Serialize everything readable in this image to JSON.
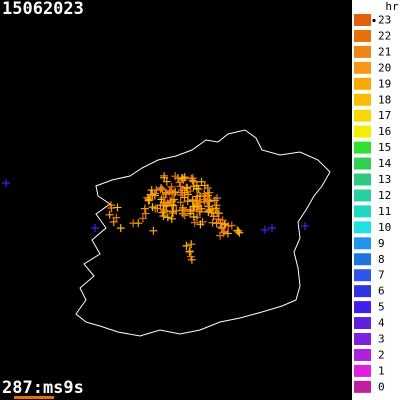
{
  "header": {
    "title": "15062023"
  },
  "footer": {
    "text": "287:ms9s"
  },
  "legend": {
    "unit": "hr",
    "items": [
      {
        "label": "23",
        "color": "#e0600c"
      },
      {
        "label": "22",
        "color": "#e8700c"
      },
      {
        "label": "21",
        "color": "#f08414"
      },
      {
        "label": "20",
        "color": "#f89818"
      },
      {
        "label": "19",
        "color": "#f8a800"
      },
      {
        "label": "18",
        "color": "#f8bc00"
      },
      {
        "label": "17",
        "color": "#f8d800"
      },
      {
        "label": "16",
        "color": "#f0f000"
      },
      {
        "label": "15",
        "color": "#30e030"
      },
      {
        "label": "14",
        "color": "#30d050"
      },
      {
        "label": "13",
        "color": "#30c880"
      },
      {
        "label": "12",
        "color": "#28d0a0"
      },
      {
        "label": "11",
        "color": "#20d8c0"
      },
      {
        "label": "10",
        "color": "#20e0e0"
      },
      {
        "label": "9",
        "color": "#2094f0"
      },
      {
        "label": "8",
        "color": "#2074e0"
      },
      {
        "label": "7",
        "color": "#3054f0"
      },
      {
        "label": "6",
        "color": "#3034e0"
      },
      {
        "label": "5",
        "color": "#4020f0"
      },
      {
        "label": "4",
        "color": "#6020e0"
      },
      {
        "label": "3",
        "color": "#8020e0"
      },
      {
        "label": "2",
        "color": "#b020e0"
      },
      {
        "label": "1",
        "color": "#e020e0"
      },
      {
        "label": "0",
        "color": "#c020a0"
      }
    ]
  }
}
